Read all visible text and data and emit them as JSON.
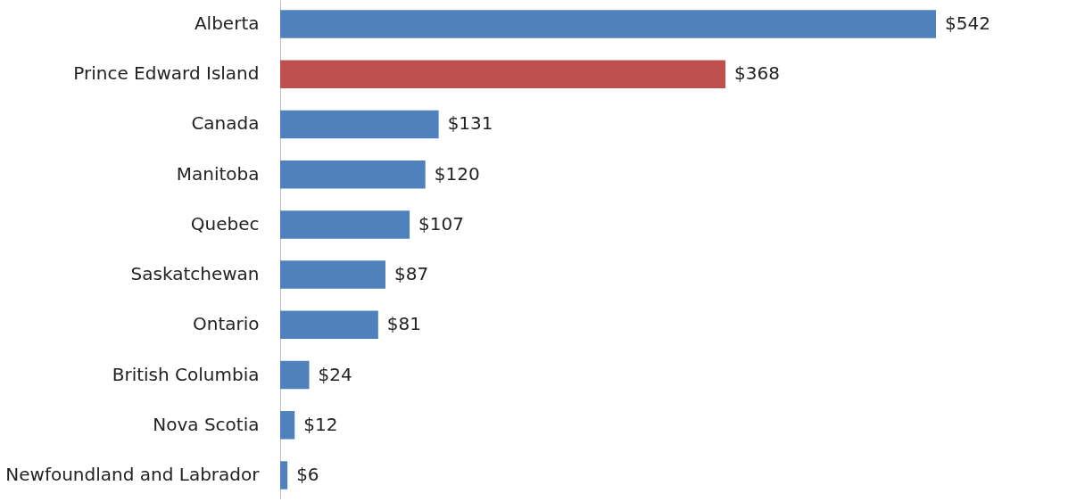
{
  "chart_data": {
    "type": "bar",
    "orientation": "horizontal",
    "categories": [
      "Alberta",
      "Prince Edward Island",
      "Canada",
      "Manitoba",
      "Quebec",
      "Saskatchewan",
      "Ontario",
      "British Columbia",
      "Nova Scotia",
      "Newfoundland and Labrador"
    ],
    "values": [
      542,
      368,
      131,
      120,
      107,
      87,
      81,
      24,
      12,
      6
    ],
    "colors": [
      "#4f81bd",
      "#c0504d",
      "#4f81bd",
      "#4f81bd",
      "#4f81bd",
      "#4f81bd",
      "#4f81bd",
      "#4f81bd",
      "#4f81bd",
      "#4f81bd"
    ],
    "value_labels": [
      "$542",
      "$368",
      "$131",
      "$120",
      "$107",
      "$87",
      "$81",
      "$24",
      "$12",
      "$6"
    ],
    "grid": false
  }
}
